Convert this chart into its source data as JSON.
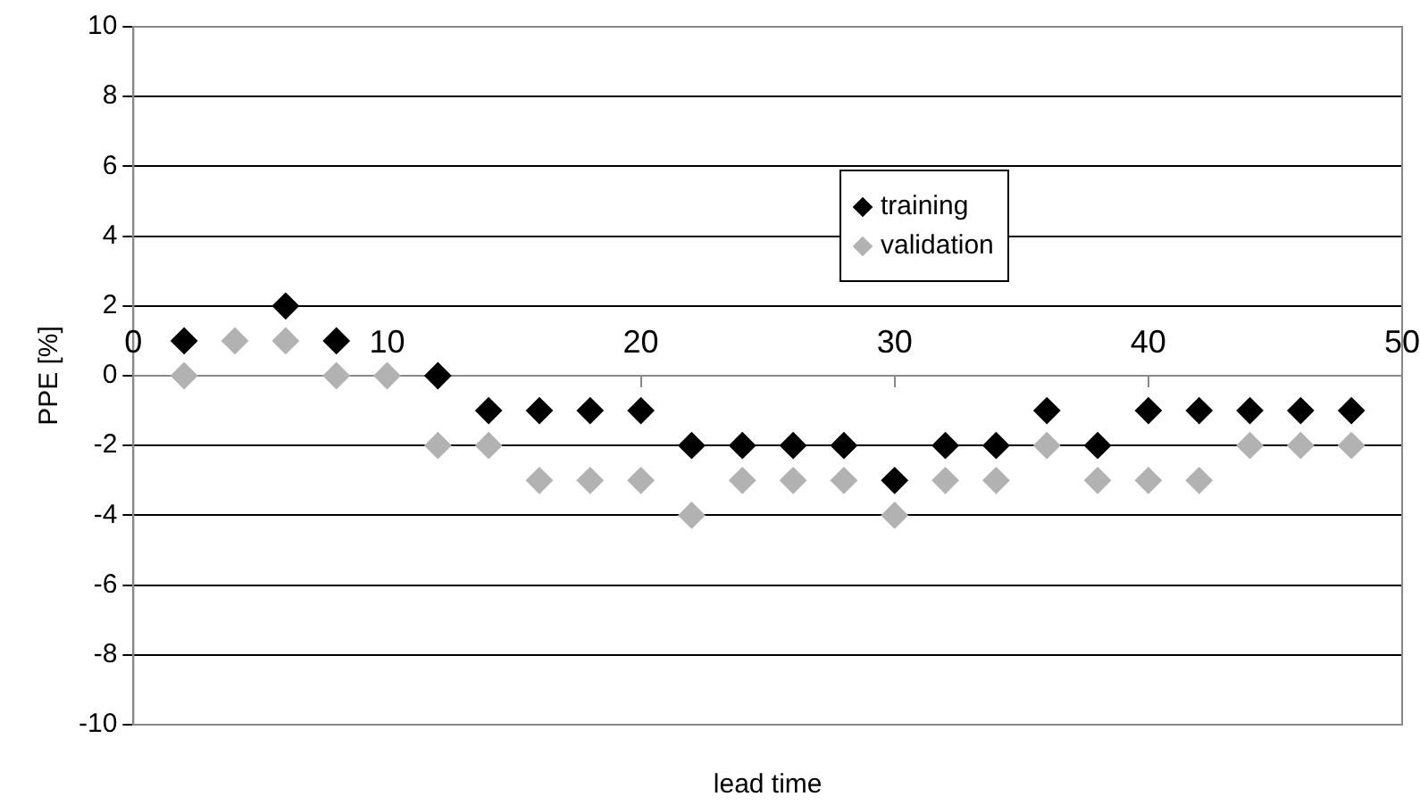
{
  "chart_data": {
    "type": "scatter",
    "xlabel": "lead time",
    "ylabel": "PPE [%]",
    "x": [
      2,
      4,
      6,
      8,
      10,
      12,
      14,
      16,
      18,
      20,
      22,
      24,
      26,
      28,
      30,
      32,
      34,
      36,
      38,
      40,
      42,
      44,
      46,
      48
    ],
    "series": [
      {
        "name": "training",
        "color": "#000000",
        "values": [
          1,
          null,
          2,
          1,
          null,
          0,
          -1,
          -1,
          -1,
          -1,
          -2,
          -2,
          -2,
          -2,
          -3,
          -2,
          -2,
          -1,
          -2,
          -1,
          -1,
          -1,
          -1,
          -1
        ]
      },
      {
        "name": "validation",
        "color": "#b2b2b2",
        "values": [
          0,
          1,
          1,
          0,
          0,
          -2,
          -2,
          -3,
          -3,
          -3,
          -4,
          -3,
          -3,
          -3,
          -4,
          -3,
          -3,
          -2,
          -3,
          -3,
          -3,
          -2,
          -2,
          -2
        ]
      }
    ],
    "xlim": [
      0,
      50
    ],
    "xticks": [
      0,
      10,
      20,
      30,
      40,
      50
    ],
    "ylim": [
      -10,
      10
    ],
    "yticks": [
      -10,
      -8,
      -6,
      -4,
      -2,
      0,
      2,
      4,
      6,
      8,
      10
    ],
    "grid": "y",
    "legend": "top",
    "marker": "diamond"
  }
}
